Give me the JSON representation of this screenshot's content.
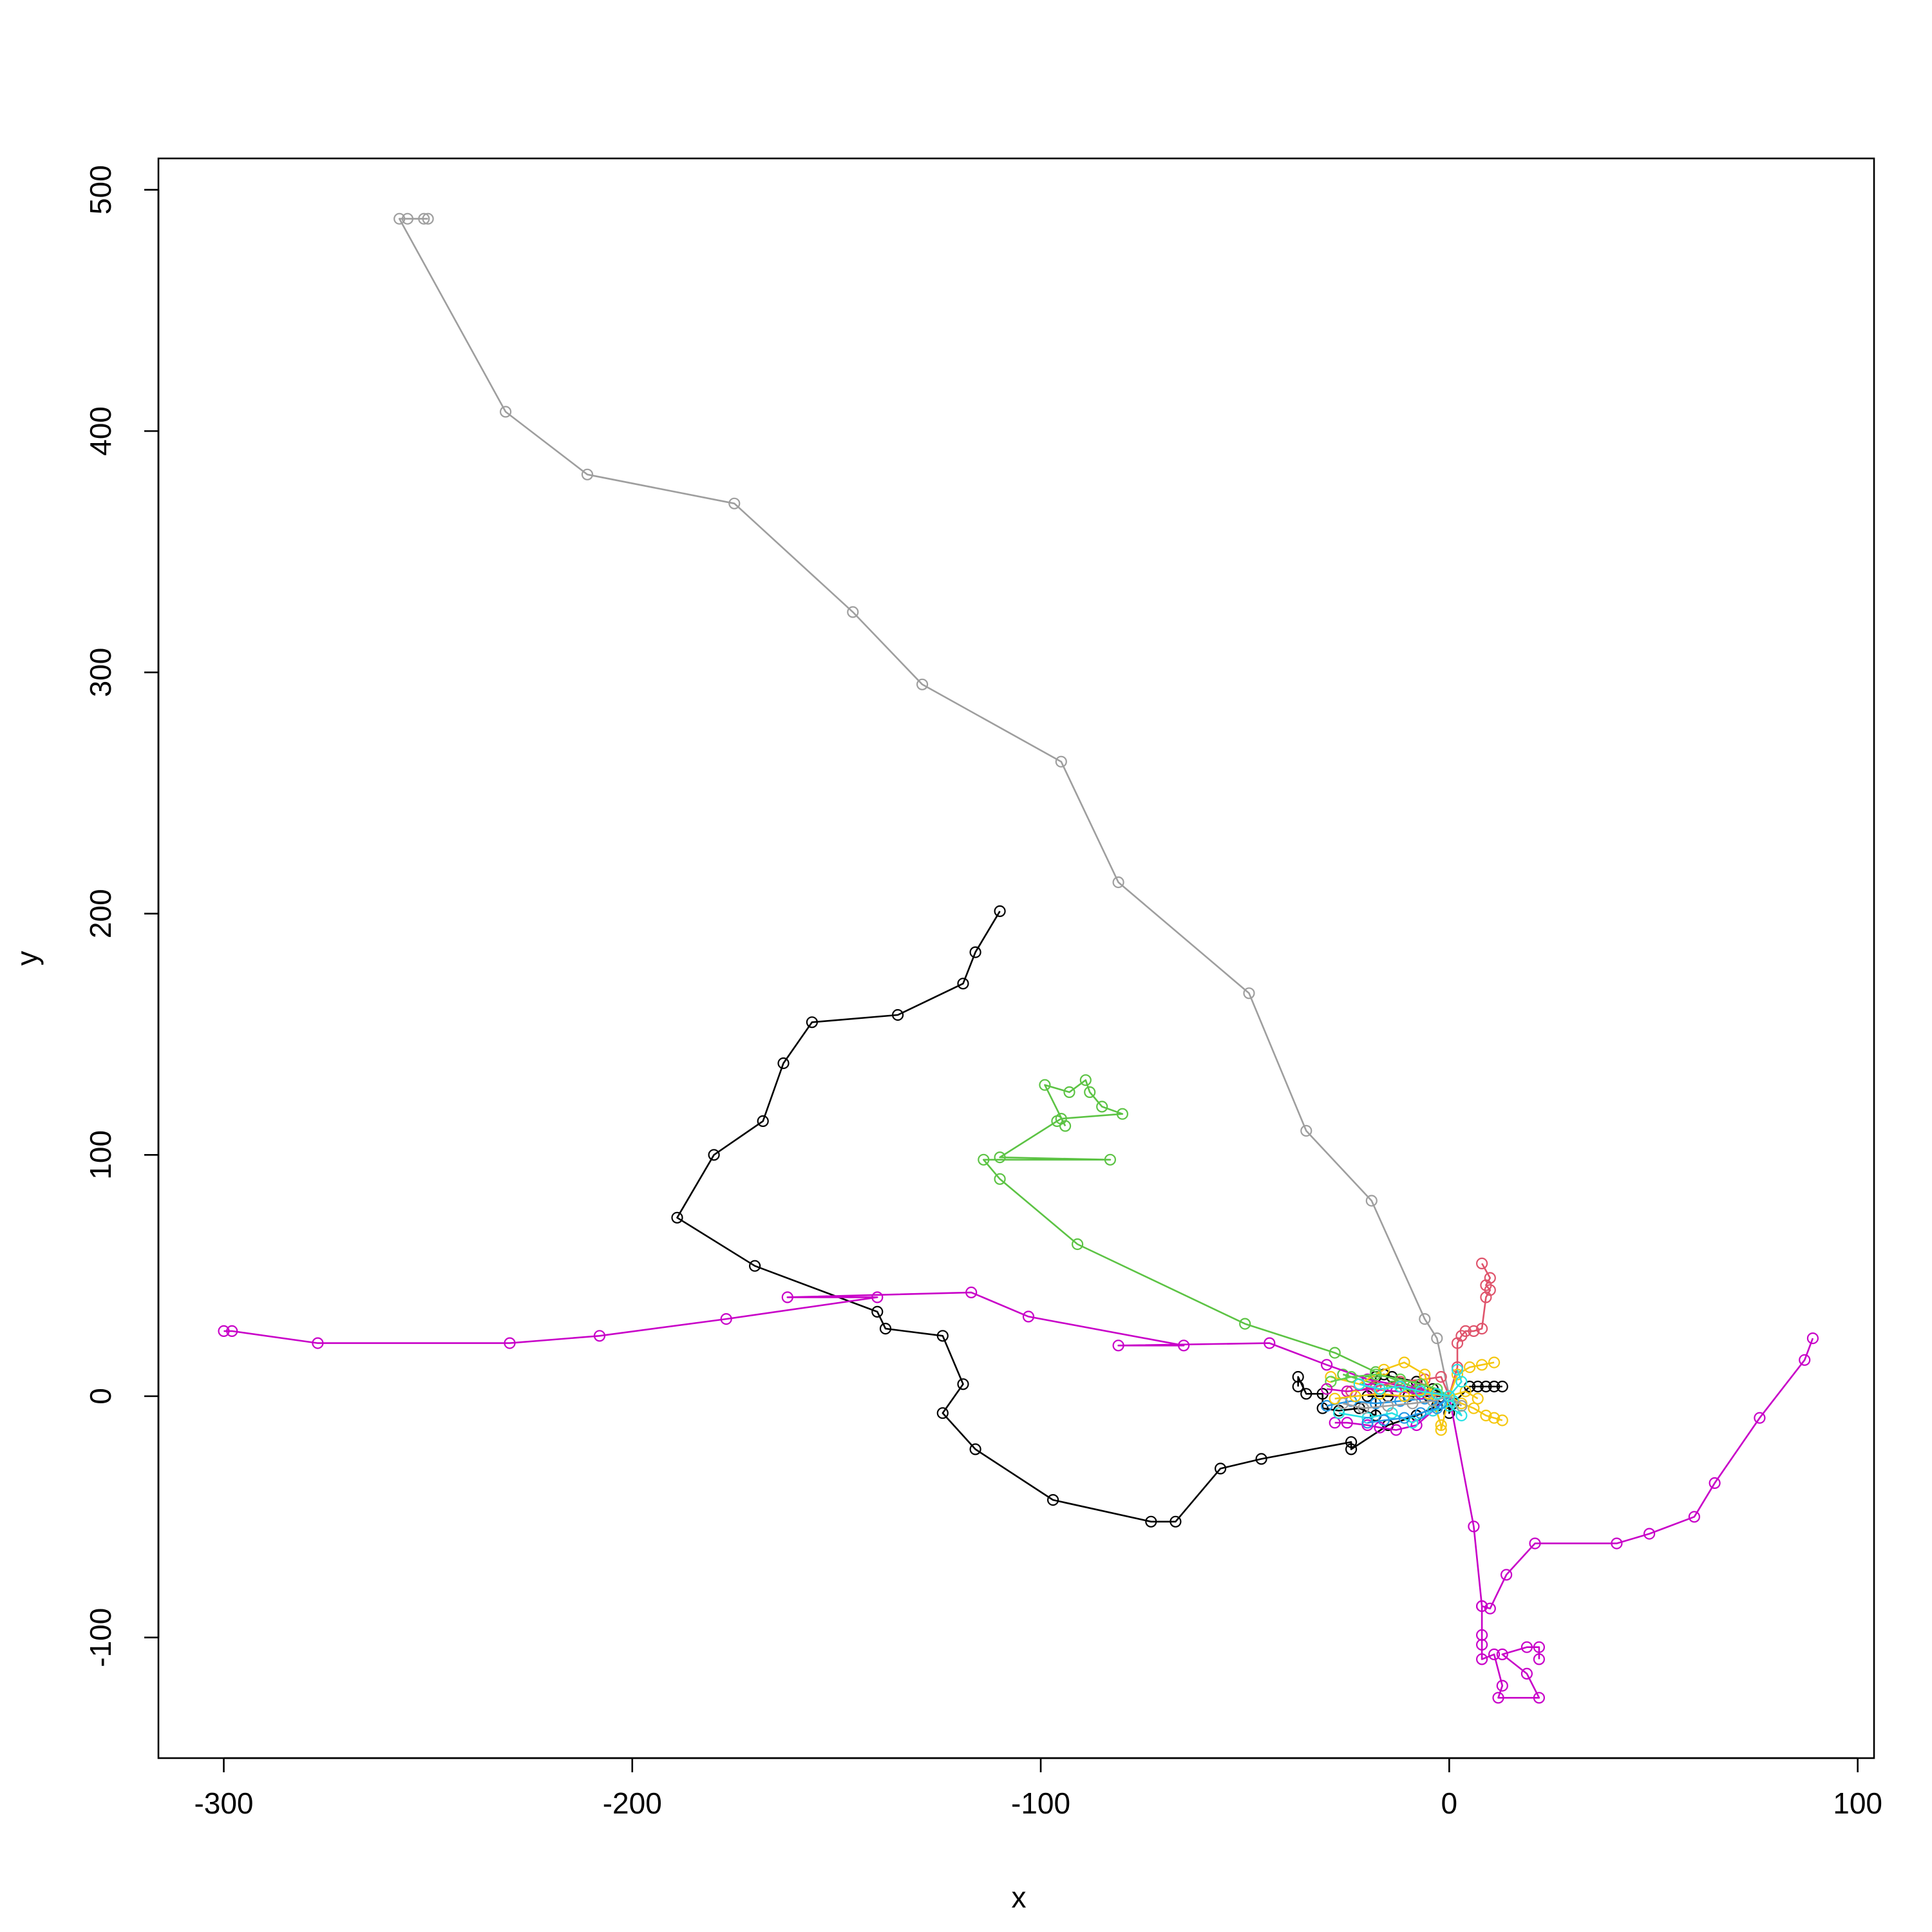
{
  "chart_data": {
    "type": "line",
    "title": "",
    "xlabel": "x",
    "ylabel": "y",
    "xlim": [
      -316,
      104
    ],
    "ylim": [
      -150,
      513
    ],
    "x_ticks": [
      -300,
      -200,
      -100,
      0,
      100
    ],
    "y_ticks": [
      -100,
      0,
      100,
      200,
      300,
      400,
      500
    ],
    "x_tick_labels": [
      "-300",
      "-200",
      "-100",
      "0",
      "100"
    ],
    "y_tick_labels": [
      "-100",
      "0",
      "100",
      "200",
      "300",
      "400",
      "500"
    ],
    "grid": false,
    "markers": "open-circle",
    "series": [
      {
        "color": "#9e9e9e",
        "points": [
          [
            0,
            0
          ],
          [
            -3,
            24
          ],
          [
            -6,
            32
          ],
          [
            -19,
            81
          ],
          [
            -35,
            110
          ],
          [
            -49,
            167
          ],
          [
            -81,
            213
          ],
          [
            -95,
            263
          ],
          [
            -129,
            295
          ],
          [
            -146,
            325
          ],
          [
            -175,
            370
          ],
          [
            -211,
            382
          ],
          [
            -231,
            408
          ],
          [
            -257,
            488
          ],
          [
            -255,
            488
          ],
          [
            -251,
            488
          ],
          [
            -250,
            488
          ]
        ]
      },
      {
        "color": "#000000",
        "points": [
          [
            -110,
            201
          ],
          [
            -116,
            184
          ],
          [
            -119,
            171
          ],
          [
            -135,
            158
          ],
          [
            -156,
            155
          ],
          [
            -163,
            138
          ],
          [
            -168,
            114
          ],
          [
            -180,
            100
          ],
          [
            -189,
            74
          ],
          [
            -170,
            54
          ],
          [
            -140,
            35
          ],
          [
            -138,
            28
          ],
          [
            -124,
            25
          ],
          [
            -119,
            5
          ],
          [
            -124,
            -7
          ],
          [
            -116,
            -22
          ],
          [
            -97,
            -43
          ],
          [
            -73,
            -52
          ],
          [
            -67,
            -52
          ],
          [
            -56,
            -30
          ],
          [
            -46,
            -26
          ],
          [
            -24,
            -19
          ],
          [
            -24,
            -22
          ],
          [
            -15,
            -12
          ],
          [
            -8,
            -8
          ],
          [
            -3,
            -4
          ],
          [
            0,
            0
          ]
        ]
      },
      {
        "color": "#000000",
        "points": [
          [
            -37,
            4
          ],
          [
            -37,
            8
          ],
          [
            -35,
            1
          ],
          [
            -31,
            1
          ],
          [
            -31,
            -5
          ],
          [
            -27,
            -6
          ],
          [
            -22,
            -5
          ],
          [
            -18,
            -8
          ],
          [
            -18,
            8
          ],
          [
            -16,
            9
          ],
          [
            -14,
            8
          ],
          [
            -8,
            6
          ],
          [
            -4,
            3
          ],
          [
            0,
            0
          ],
          [
            0,
            -7
          ],
          [
            1,
            -3
          ],
          [
            5,
            4
          ],
          [
            7,
            4
          ],
          [
            9,
            4
          ],
          [
            11,
            4
          ],
          [
            13,
            4
          ]
        ]
      },
      {
        "color": "#000000",
        "points": [
          [
            -20,
            0
          ],
          [
            -15,
            0
          ],
          [
            -10,
            0
          ],
          [
            -5,
            0
          ],
          [
            0,
            0
          ]
        ]
      },
      {
        "color": "#5cc344",
        "points": [
          [
            0,
            0
          ],
          [
            -9,
            4
          ],
          [
            -18,
            10
          ],
          [
            -28,
            18
          ],
          [
            -50,
            30
          ],
          [
            -91,
            63
          ],
          [
            -110,
            90
          ],
          [
            -114,
            98
          ],
          [
            -83,
            98
          ],
          [
            -110,
            99
          ],
          [
            -96,
            114
          ],
          [
            -95,
            115
          ],
          [
            -80,
            117
          ],
          [
            -85,
            120
          ],
          [
            -88,
            126
          ],
          [
            -89,
            131
          ],
          [
            -93,
            126
          ],
          [
            -99,
            129
          ],
          [
            -94,
            112
          ]
        ]
      },
      {
        "color": "#5cc344",
        "points": [
          [
            -26,
            9
          ],
          [
            -20,
            6
          ],
          [
            -14,
            4
          ],
          [
            -8,
            2
          ],
          [
            -3,
            1
          ],
          [
            0,
            0
          ]
        ]
      },
      {
        "color": "#c800c8",
        "points": [
          [
            0,
            0
          ],
          [
            -8,
            3
          ],
          [
            -20,
            7
          ],
          [
            -30,
            13
          ],
          [
            -44,
            22
          ],
          [
            -81,
            21
          ],
          [
            -65,
            21
          ],
          [
            -103,
            33
          ],
          [
            -117,
            43
          ],
          [
            -162,
            41
          ],
          [
            -140,
            41
          ],
          [
            -177,
            32
          ],
          [
            -208,
            25
          ],
          [
            -230,
            22
          ],
          [
            -277,
            22
          ],
          [
            -298,
            27
          ],
          [
            -300,
            27
          ]
        ]
      },
      {
        "color": "#c800c8",
        "points": [
          [
            0,
            0
          ],
          [
            6,
            -54
          ],
          [
            8,
            -87
          ],
          [
            10,
            -88
          ],
          [
            14,
            -74
          ],
          [
            21,
            -61
          ],
          [
            41,
            -61
          ],
          [
            49,
            -57
          ],
          [
            60,
            -50
          ],
          [
            65,
            -36
          ],
          [
            76,
            -9
          ],
          [
            87,
            15
          ],
          [
            89,
            24
          ]
        ]
      },
      {
        "color": "#c800c8",
        "points": [
          [
            8,
            -87
          ],
          [
            8,
            -99
          ],
          [
            8,
            -103
          ],
          [
            8,
            -109
          ],
          [
            11,
            -107
          ],
          [
            13,
            -120
          ],
          [
            12,
            -125
          ],
          [
            22,
            -125
          ],
          [
            19,
            -115
          ],
          [
            13,
            -107
          ],
          [
            19,
            -104
          ],
          [
            22,
            -104
          ],
          [
            22,
            -109
          ]
        ]
      },
      {
        "color": "#c800c8",
        "points": [
          [
            -28,
            -11
          ],
          [
            -25,
            -11
          ],
          [
            -20,
            -12
          ],
          [
            -17,
            -13
          ],
          [
            -13,
            -14
          ],
          [
            -8,
            -12
          ],
          [
            -4,
            -6
          ],
          [
            0,
            0
          ]
        ]
      },
      {
        "color": "#df536b",
        "points": [
          [
            0,
            0
          ],
          [
            2,
            12
          ],
          [
            2,
            22
          ],
          [
            3,
            25
          ],
          [
            4,
            27
          ],
          [
            6,
            27
          ],
          [
            8,
            28
          ],
          [
            9,
            41
          ],
          [
            10,
            44
          ],
          [
            9,
            46
          ],
          [
            10,
            49
          ],
          [
            8,
            55
          ]
        ]
      },
      {
        "color": "#df536b",
        "points": [
          [
            -24,
            2
          ],
          [
            -18,
            4
          ],
          [
            -12,
            6
          ],
          [
            -6,
            7
          ],
          [
            -2,
            8
          ],
          [
            0,
            0
          ]
        ]
      },
      {
        "color": "#f5c710",
        "points": [
          [
            0,
            0
          ],
          [
            3,
            -3
          ],
          [
            6,
            -5
          ],
          [
            9,
            -8
          ],
          [
            11,
            -9
          ],
          [
            13,
            -10
          ]
        ]
      },
      {
        "color": "#f5c710",
        "points": [
          [
            0,
            0
          ],
          [
            2,
            9
          ],
          [
            5,
            12
          ],
          [
            8,
            13
          ],
          [
            11,
            14
          ]
        ]
      },
      {
        "color": "#f5c710",
        "points": [
          [
            -29,
            8
          ],
          [
            -22,
            5
          ],
          [
            -16,
            11
          ],
          [
            -11,
            14
          ],
          [
            -6,
            9
          ],
          [
            -2,
            -12
          ],
          [
            -2,
            -14
          ],
          [
            0,
            0
          ]
        ]
      },
      {
        "color": "#28e2e5",
        "points": [
          [
            -27,
            -7
          ],
          [
            -20,
            -9
          ],
          [
            -14,
            -7
          ],
          [
            -9,
            -11
          ],
          [
            -4,
            -6
          ],
          [
            0,
            -4
          ],
          [
            3,
            -8
          ],
          [
            1,
            -2
          ],
          [
            0,
            0
          ]
        ]
      },
      {
        "color": "#61d04f",
        "points": [
          [
            -29,
            6
          ],
          [
            -24,
            8
          ],
          [
            -18,
            9
          ],
          [
            -12,
            7
          ],
          [
            -7,
            5
          ],
          [
            -3,
            3
          ],
          [
            0,
            0
          ]
        ]
      },
      {
        "color": "#2297e6",
        "points": [
          [
            -30,
            -4
          ],
          [
            -24,
            -2
          ],
          [
            -18,
            -3
          ],
          [
            -12,
            -2
          ],
          [
            -6,
            -1
          ],
          [
            -2,
            -3
          ],
          [
            0,
            0
          ]
        ]
      },
      {
        "color": "#2297e6",
        "points": [
          [
            -20,
            -11
          ],
          [
            -16,
            -10
          ],
          [
            -11,
            -9
          ],
          [
            -7,
            -7
          ],
          [
            -3,
            -5
          ],
          [
            0,
            0
          ]
        ]
      },
      {
        "color": "#cd0bbc",
        "points": [
          [
            -30,
            3
          ],
          [
            -25,
            2
          ],
          [
            -19,
            3
          ],
          [
            -13,
            2
          ],
          [
            -7,
            1
          ],
          [
            0,
            0
          ]
        ]
      },
      {
        "color": "#9e9e9e",
        "points": [
          [
            -26,
            -3
          ],
          [
            -21,
            -5
          ],
          [
            -15,
            -4
          ],
          [
            -9,
            -3
          ],
          [
            -4,
            -2
          ],
          [
            0,
            0
          ],
          [
            3,
            -4
          ]
        ]
      },
      {
        "color": "#f5c710",
        "points": [
          [
            -28,
            -1
          ],
          [
            -23,
            0
          ],
          [
            -17,
            1
          ],
          [
            -11,
            0
          ],
          [
            -5,
            1
          ],
          [
            0,
            0
          ],
          [
            4,
            2
          ],
          [
            7,
            -1
          ]
        ]
      },
      {
        "color": "#28e2e5",
        "points": [
          [
            -22,
            5
          ],
          [
            -17,
            3
          ],
          [
            -12,
            4
          ],
          [
            -7,
            2
          ],
          [
            -3,
            1
          ],
          [
            0,
            0
          ],
          [
            3,
            6
          ],
          [
            2,
            11
          ]
        ]
      }
    ]
  }
}
